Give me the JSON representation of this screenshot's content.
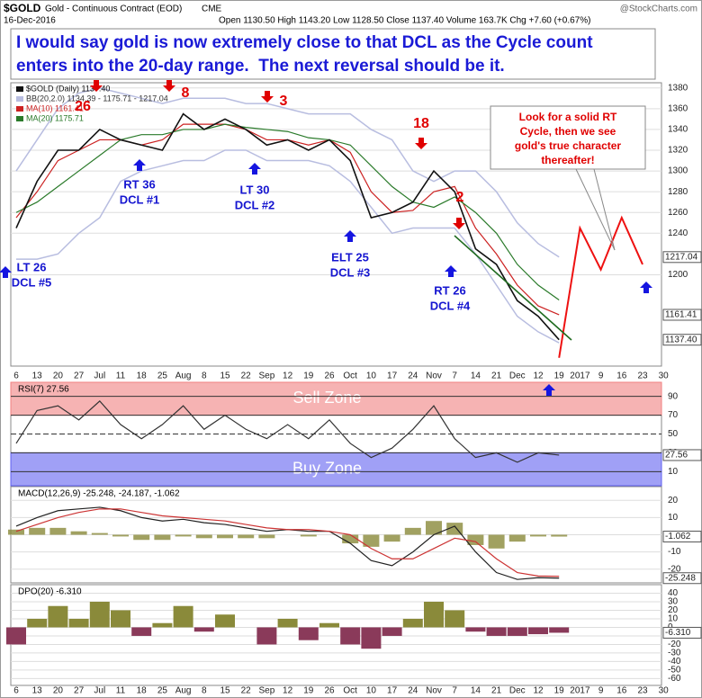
{
  "header": {
    "symbol": "$GOLD",
    "name": "Gold - Continuous Contract (EOD)",
    "exchange": "CME",
    "date": "16-Dec-2016",
    "stats": "Open 1130.50 High 1143.20 Low 1128.50 Close 1137.40 Volume 163.7K Chg +7.60 (+0.67%)",
    "brand": "@StockCharts.com"
  },
  "headline": [
    "I would say gold is now extremely close to that DCL as the Cycle count",
    "enters into the 20-day range.  The next reversal should be it."
  ],
  "chart_data": [
    {
      "type": "line",
      "categories": [
        "6",
        "13",
        "20",
        "27",
        "Jul",
        "11",
        "18",
        "25",
        "Aug",
        "8",
        "15",
        "22",
        "Sep",
        "12",
        "19",
        "26",
        "Oct",
        "10",
        "17",
        "24",
        "Nov",
        "7",
        "14",
        "21",
        "Dec",
        "12",
        "19",
        "2017",
        "9",
        "16",
        "23",
        "30"
      ],
      "ylim": [
        1112,
        1385
      ],
      "yticks": [
        1200,
        1240,
        1260,
        1280,
        1300,
        1320,
        1340,
        1360,
        1380
      ],
      "tags": [
        1217.04,
        1161.41,
        {
          "value": 1137.4,
          "label": "1137.40"
        }
      ],
      "series": [
        {
          "kind": "band",
          "name": "BB(20,2.0) 1134.39 - 1175.71 - 1217.04",
          "color": "#b8bde0",
          "upper": [
            1300,
            1330,
            1360,
            1375,
            1380,
            1375,
            1370,
            1365,
            1370,
            1370,
            1370,
            1365,
            1365,
            1360,
            1355,
            1355,
            1355,
            1340,
            1330,
            1300,
            1290,
            1300,
            1300,
            1280,
            1250,
            1230,
            1217.04,
            null,
            null,
            null,
            null,
            null
          ],
          "lower": [
            1215,
            1215,
            1220,
            1240,
            1255,
            1290,
            1300,
            1305,
            1310,
            1310,
            1320,
            1320,
            1310,
            1310,
            1310,
            1305,
            1290,
            1265,
            1240,
            1245,
            1245,
            1245,
            1220,
            1190,
            1160,
            1145,
            1134.39,
            null,
            null,
            null,
            null,
            null
          ]
        },
        {
          "kind": "line",
          "name": "MA(10) 1161.41",
          "color": "#cc2222",
          "values": [
            1255,
            1280,
            1310,
            1320,
            1330,
            1330,
            1325,
            1330,
            1345,
            1345,
            1345,
            1340,
            1330,
            1330,
            1325,
            1330,
            1318,
            1280,
            1260,
            1262,
            1280,
            1285,
            1245,
            1220,
            1190,
            1170,
            1161.41,
            null,
            null,
            null,
            null,
            null
          ]
        },
        {
          "kind": "line",
          "name": "MA(20) 1175.71",
          "color": "#2a7a2a",
          "values": [
            1260,
            1270,
            1285,
            1300,
            1315,
            1330,
            1335,
            1335,
            1340,
            1340,
            1345,
            1342,
            1340,
            1338,
            1332,
            1330,
            1325,
            1305,
            1285,
            1270,
            1265,
            1275,
            1260,
            1240,
            1210,
            1190,
            1175.71,
            null,
            null,
            null,
            null,
            null
          ]
        },
        {
          "kind": "line",
          "name": "$GOLD (Daily) 1137.40",
          "color": "#111111",
          "values": [
            1245,
            1290,
            1320,
            1320,
            1340,
            1330,
            1325,
            1320,
            1355,
            1340,
            1350,
            1340,
            1325,
            1330,
            1320,
            1330,
            1310,
            1255,
            1260,
            1270,
            1300,
            1280,
            1225,
            1210,
            1175,
            1160,
            1137.4,
            null,
            null,
            null,
            null,
            null
          ]
        }
      ],
      "projection": {
        "color": "#ee1111",
        "values": [
          null,
          null,
          null,
          null,
          null,
          null,
          null,
          null,
          null,
          null,
          null,
          null,
          null,
          null,
          null,
          null,
          null,
          null,
          null,
          null,
          null,
          null,
          null,
          null,
          null,
          null,
          1120,
          1245,
          1205,
          1255,
          1210,
          null
        ]
      },
      "annotations": [
        {
          "lines": [
            "26"
          ],
          "color": "#e00000"
        },
        {
          "lines": [
            "8"
          ],
          "color": "#e00000"
        },
        {
          "lines": [
            "3"
          ],
          "color": "#e00000"
        },
        {
          "lines": [
            "18"
          ],
          "color": "#e00000"
        },
        {
          "lines": [
            "2"
          ],
          "color": "#e00000"
        },
        {
          "lines": [
            "RT 36",
            "DCL #1"
          ],
          "color": "#1515d0"
        },
        {
          "lines": [
            "LT 30",
            "DCL #2"
          ],
          "color": "#1515d0"
        },
        {
          "lines": [
            "ELT 25",
            "DCL #3"
          ],
          "color": "#1515d0"
        },
        {
          "lines": [
            "RT 26",
            "DCL #4"
          ],
          "color": "#1515d0"
        },
        {
          "lines": [
            "LT 26",
            "DCL #5"
          ],
          "color": "#1515d0"
        }
      ],
      "callout": [
        "Look for a solid RT",
        "Cycle, then we see",
        "gold's true character",
        "thereafter!"
      ]
    },
    {
      "type": "line",
      "title": "RSI(7) 27.56",
      "ylim": [
        -5,
        105
      ],
      "yticks": [
        10,
        30,
        50,
        70,
        90
      ],
      "tags": [
        27.56
      ],
      "zones": [
        {
          "label": "Sell Zone",
          "range": [
            70,
            105
          ],
          "color": "#f08080"
        },
        {
          "label": "Buy Zone",
          "range": [
            -5,
            30
          ],
          "color": "#6060f0"
        }
      ],
      "series": [
        {
          "kind": "line",
          "color": "#333333",
          "values": [
            40,
            75,
            80,
            65,
            85,
            60,
            45,
            60,
            80,
            55,
            70,
            55,
            45,
            60,
            45,
            65,
            40,
            25,
            35,
            55,
            80,
            45,
            25,
            30,
            20,
            30,
            27.56,
            null,
            null,
            null,
            null,
            null
          ]
        }
      ]
    },
    {
      "type": "line",
      "title": "MACD(12,26,9) -25.248, -24.187, -1.062",
      "ylim": [
        -28,
        28
      ],
      "yticks": [
        -20,
        -10,
        0,
        10,
        20
      ],
      "tags": [
        -1.062,
        -25.248
      ],
      "series": [
        {
          "kind": "histogram",
          "color": "#8a8a3a",
          "values": [
            3,
            4,
            4,
            2,
            1,
            -1,
            -3,
            -3,
            -1,
            -2,
            -2,
            -2,
            -2,
            0,
            -1,
            0,
            -5,
            -7,
            -4,
            4,
            8,
            7,
            -6,
            -8,
            -4,
            -1,
            -1.062,
            null,
            null,
            null,
            null,
            null
          ]
        },
        {
          "kind": "line",
          "color": "#222222",
          "values": [
            5,
            10,
            14,
            15,
            16,
            14,
            10,
            8,
            9,
            7,
            6,
            4,
            2,
            3,
            2,
            2,
            -5,
            -15,
            -18,
            -10,
            0,
            5,
            -10,
            -22,
            -26,
            -25,
            -25.248,
            null,
            null,
            null,
            null,
            null
          ]
        },
        {
          "kind": "line",
          "color": "#cc3333",
          "values": [
            2,
            6,
            10,
            13,
            15,
            15,
            13,
            11,
            10,
            9,
            8,
            6,
            4,
            3,
            3,
            2,
            0,
            -8,
            -14,
            -14,
            -8,
            -2,
            -4,
            -14,
            -22,
            -24,
            -24.187,
            null,
            null,
            null,
            null,
            null
          ]
        }
      ]
    },
    {
      "type": "bar",
      "title": "DPO(20) -6.310",
      "ylim": [
        -68,
        50
      ],
      "yticks": [
        -60,
        -50,
        -40,
        -30,
        -20,
        -10,
        0,
        10,
        20,
        30,
        40
      ],
      "tags": [
        {
          "value": -6.31,
          "label": "-6.310"
        }
      ],
      "colors": [
        "#8a8a3a",
        "#8a3a5a"
      ],
      "values": [
        -20,
        10,
        25,
        10,
        30,
        20,
        -10,
        5,
        25,
        -5,
        15,
        0,
        -20,
        10,
        -15,
        5,
        -20,
        -25,
        -10,
        10,
        30,
        20,
        -5,
        -10,
        -10,
        -8,
        -6.31,
        null,
        null,
        null,
        null,
        null
      ]
    }
  ]
}
